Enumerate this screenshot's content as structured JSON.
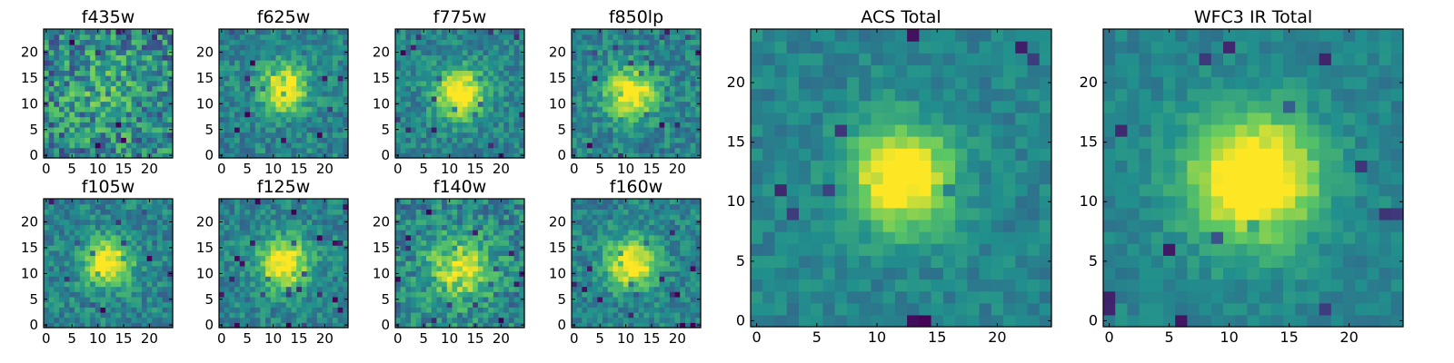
{
  "chart_data": [
    {
      "type": "heatmap",
      "title": "f435w",
      "grid_size": 25,
      "center": [
        12,
        12
      ],
      "peak": 0.15,
      "sigma": 6,
      "noise": 0.55,
      "seed": 11,
      "xticks": [
        0,
        5,
        10,
        15,
        20
      ],
      "yticks": [
        0,
        5,
        10,
        15,
        20
      ],
      "grid": false
    },
    {
      "type": "heatmap",
      "title": "f625w",
      "grid_size": 25,
      "center": [
        12,
        13
      ],
      "peak": 0.62,
      "sigma": 3.2,
      "noise": 0.3,
      "seed": 23,
      "xticks": [
        0,
        5,
        10,
        15,
        20
      ],
      "yticks": [
        0,
        5,
        10,
        15,
        20
      ],
      "grid": false
    },
    {
      "type": "heatmap",
      "title": "f775w",
      "grid_size": 25,
      "center": [
        12,
        12
      ],
      "peak": 0.68,
      "sigma": 3.3,
      "noise": 0.28,
      "seed": 37,
      "xticks": [
        0,
        5,
        10,
        15,
        20
      ],
      "yticks": [
        0,
        5,
        10,
        15,
        20
      ],
      "grid": false
    },
    {
      "type": "heatmap",
      "title": "f850lp",
      "grid_size": 25,
      "center": [
        11,
        12
      ],
      "peak": 0.62,
      "sigma": 3.4,
      "noise": 0.3,
      "seed": 41,
      "xticks": [
        0,
        5,
        10,
        15,
        20
      ],
      "yticks": [
        0,
        5,
        10,
        15,
        20
      ],
      "grid": false
    },
    {
      "type": "heatmap",
      "title": "f105w",
      "grid_size": 25,
      "center": [
        12,
        12
      ],
      "peak": 0.62,
      "sigma": 3.2,
      "noise": 0.3,
      "seed": 53,
      "xticks": [
        0,
        5,
        10,
        15,
        20
      ],
      "yticks": [
        0,
        5,
        10,
        15,
        20
      ],
      "grid": false
    },
    {
      "type": "heatmap",
      "title": "f125w",
      "grid_size": 25,
      "center": [
        12,
        12
      ],
      "peak": 0.64,
      "sigma": 3.4,
      "noise": 0.28,
      "seed": 67,
      "xticks": [
        0,
        5,
        10,
        15,
        20
      ],
      "yticks": [
        0,
        5,
        10,
        15,
        20
      ],
      "grid": false
    },
    {
      "type": "heatmap",
      "title": "f140w",
      "grid_size": 25,
      "center": [
        12,
        11
      ],
      "peak": 0.45,
      "sigma": 4.5,
      "noise": 0.38,
      "seed": 71,
      "xticks": [
        0,
        5,
        10,
        15,
        20
      ],
      "yticks": [
        0,
        5,
        10,
        15,
        20
      ],
      "grid": false
    },
    {
      "type": "heatmap",
      "title": "f160w",
      "grid_size": 25,
      "center": [
        11,
        12
      ],
      "peak": 0.64,
      "sigma": 3.3,
      "noise": 0.28,
      "seed": 83,
      "xticks": [
        0,
        5,
        10,
        15,
        20
      ],
      "yticks": [
        0,
        5,
        10,
        15,
        20
      ],
      "grid": false
    },
    {
      "type": "heatmap",
      "title": "ACS Total",
      "grid_size": 25,
      "center": [
        12,
        12
      ],
      "peak": 0.68,
      "sigma": 3.0,
      "noise": 0.18,
      "seed": 97,
      "xticks": [
        0,
        5,
        10,
        15,
        20
      ],
      "yticks": [
        0,
        5,
        10,
        15,
        20
      ],
      "grid": false
    },
    {
      "type": "heatmap",
      "title": "WFC3 IR Total",
      "grid_size": 25,
      "center": [
        12,
        12
      ],
      "peak": 0.74,
      "sigma": 3.8,
      "noise": 0.16,
      "seed": 101,
      "xticks": [
        0,
        5,
        10,
        15,
        20
      ],
      "yticks": [
        0,
        5,
        10,
        15,
        20
      ],
      "grid": false
    }
  ],
  "colormap": [
    "#440154",
    "#3b528b",
    "#21908d",
    "#5dc863",
    "#fde725"
  ]
}
